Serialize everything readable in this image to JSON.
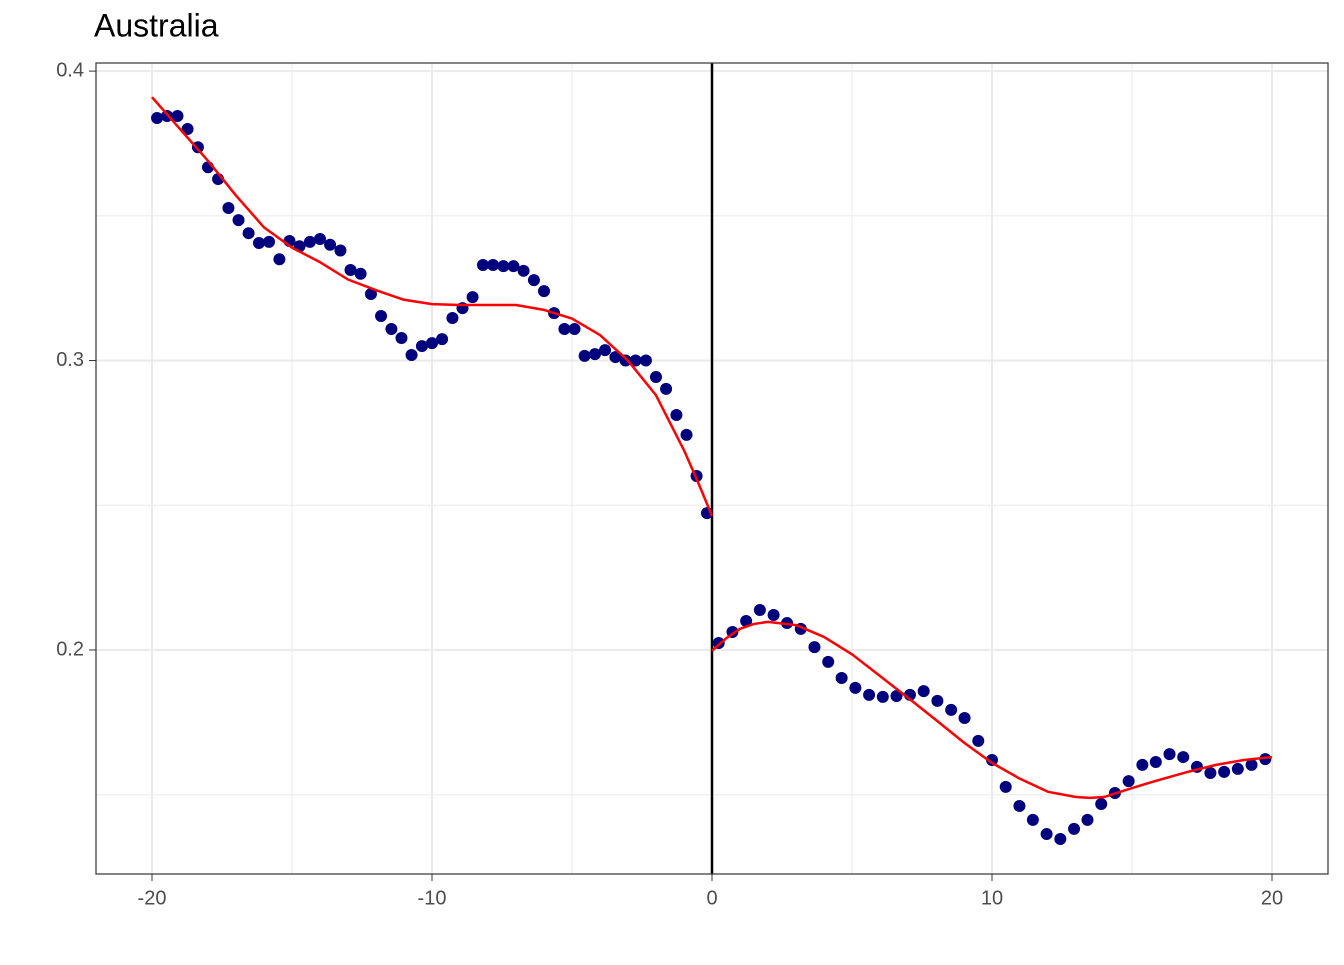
{
  "chart_data": {
    "type": "scatter",
    "title": "Australia",
    "xlim": [
      -22,
      22
    ],
    "ylim": [
      0.1226,
      0.4028
    ],
    "xticks": [
      -20,
      -10,
      0,
      10,
      20
    ],
    "yticks": [
      0.2,
      0.3,
      0.4
    ],
    "xminor": [
      -15,
      -5,
      5,
      15
    ],
    "yminor": [
      0.15,
      0.25,
      0.35
    ],
    "grid": true,
    "vline": 0,
    "vline_color": "#000000",
    "series": [
      {
        "mode": "markers",
        "color": "#00007f",
        "x": [
          -19.82,
          -19.46,
          -19.09,
          -18.73,
          -18.36,
          -18.0,
          -17.64,
          -17.27,
          -16.91,
          -16.55,
          -16.18,
          -15.82,
          -15.45,
          -15.09,
          -14.73,
          -14.36,
          -14.0,
          -13.64,
          -13.27,
          -12.91,
          -12.55,
          -12.18,
          -11.82,
          -11.45,
          -11.09,
          -10.73,
          -10.36,
          -10.0,
          -9.64,
          -9.27,
          -8.91,
          -8.55,
          -8.18,
          -7.82,
          -7.45,
          -7.09,
          -6.73,
          -6.36,
          -6.0,
          -5.64,
          -5.27,
          -4.91,
          -4.55,
          -4.18,
          -3.82,
          -3.45,
          -3.09,
          -2.73,
          -2.36,
          -2.0,
          -1.64,
          -1.27,
          -0.91,
          -0.55,
          -0.18
        ],
        "values": [
          0.3838,
          0.3845,
          0.3845,
          0.38,
          0.3737,
          0.3668,
          0.3627,
          0.3527,
          0.3485,
          0.344,
          0.3406,
          0.341,
          0.335,
          0.3413,
          0.3395,
          0.341,
          0.342,
          0.34,
          0.338,
          0.3313,
          0.33,
          0.323,
          0.3154,
          0.3109,
          0.3078,
          0.3019,
          0.305,
          0.306,
          0.3074,
          0.3147,
          0.3181,
          0.3219,
          0.333,
          0.333,
          0.3326,
          0.3326,
          0.331,
          0.3278,
          0.324,
          0.3164,
          0.3109,
          0.3109,
          0.3016,
          0.3022,
          0.3036,
          0.3012,
          0.3,
          0.3,
          0.3,
          0.2943,
          0.2902,
          0.2812,
          0.2743,
          0.2601,
          0.2473
        ]
      },
      {
        "mode": "markers",
        "color": "#00007f",
        "x": [
          0.24,
          0.73,
          1.22,
          1.71,
          2.2,
          2.68,
          3.17,
          3.66,
          4.15,
          4.63,
          5.12,
          5.61,
          6.1,
          6.59,
          7.07,
          7.56,
          8.05,
          8.54,
          9.02,
          9.51,
          10.0,
          10.49,
          10.98,
          11.46,
          11.95,
          12.44,
          12.93,
          13.41,
          13.9,
          14.39,
          14.88,
          15.37,
          15.85,
          16.34,
          16.83,
          17.32,
          17.8,
          18.29,
          18.78,
          19.27,
          19.76
        ],
        "values": [
          0.2024,
          0.2062,
          0.21,
          0.2138,
          0.2121,
          0.2093,
          0.2073,
          0.201,
          0.1959,
          0.1903,
          0.1869,
          0.1845,
          0.1838,
          0.1841,
          0.1845,
          0.1858,
          0.1824,
          0.1793,
          0.1765,
          0.1686,
          0.162,
          0.1527,
          0.1461,
          0.1413,
          0.1364,
          0.1347,
          0.1382,
          0.1413,
          0.1468,
          0.1506,
          0.1547,
          0.1603,
          0.1613,
          0.164,
          0.163,
          0.1596,
          0.1575,
          0.1579,
          0.1589,
          0.1603,
          0.1623
        ]
      },
      {
        "mode": "lines",
        "color": "#ff0000",
        "x": [
          -20,
          -19,
          -18,
          -17,
          -16,
          -15,
          -14,
          -13,
          -12,
          -11,
          -10,
          -9,
          -8,
          -7,
          -6,
          -5,
          -4,
          -3,
          -2,
          -1,
          -0.5,
          0
        ],
        "values": [
          0.391,
          0.38,
          0.369,
          0.357,
          0.346,
          0.339,
          0.334,
          0.328,
          0.3243,
          0.321,
          0.3195,
          0.3192,
          0.3192,
          0.3192,
          0.3175,
          0.3145,
          0.3088,
          0.3,
          0.288,
          0.269,
          0.258,
          0.2463
        ]
      },
      {
        "mode": "lines",
        "color": "#ff0000",
        "x": [
          0,
          0.5,
          1,
          1.5,
          2,
          3,
          4,
          5,
          6,
          7,
          8,
          9,
          10,
          11,
          12,
          13,
          13.5,
          14,
          15,
          16,
          17,
          18,
          19,
          20
        ],
        "values": [
          0.1997,
          0.204,
          0.2073,
          0.209,
          0.2097,
          0.2086,
          0.2045,
          0.1985,
          0.191,
          0.1835,
          0.1758,
          0.168,
          0.161,
          0.1555,
          0.151,
          0.1492,
          0.1489,
          0.1492,
          0.1523,
          0.1552,
          0.1579,
          0.1603,
          0.162,
          0.163
        ]
      }
    ]
  }
}
